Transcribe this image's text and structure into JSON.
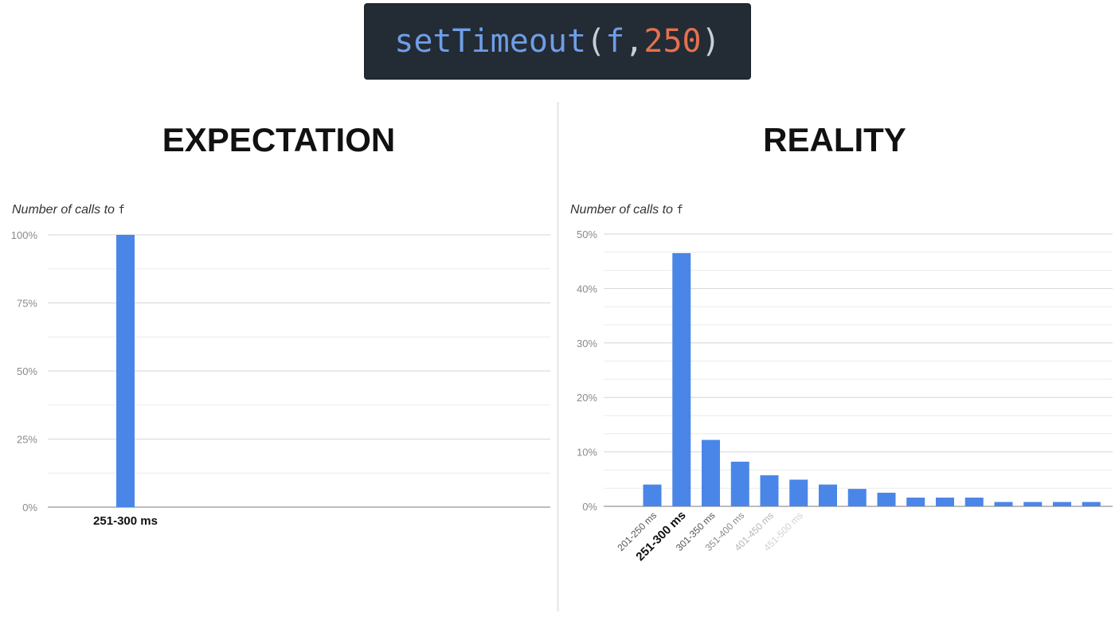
{
  "code": {
    "fn": "setTimeout",
    "open": "(",
    "arg": "f",
    "sep": ", ",
    "num": "250",
    "close": ")"
  },
  "colors": {
    "bar": "#4a86e8",
    "code_bg": "#232b34",
    "number": "#e4714e",
    "function": "#6f9ee8"
  },
  "chart_data": [
    {
      "type": "bar",
      "title": "EXPECTATION",
      "ylabel_prefix": "Number of calls to ",
      "ylabel_code": "f",
      "categories": [
        "251-300 ms"
      ],
      "values": [
        100
      ],
      "ylim": [
        0,
        100
      ],
      "yticks": [
        "0%",
        "25%",
        "50%",
        "75%",
        "100%"
      ],
      "grid": true
    },
    {
      "type": "bar",
      "title": "REALITY",
      "ylabel_prefix": "Number of calls to ",
      "ylabel_code": "f",
      "categories": [
        "201-250 ms",
        "251-300 ms",
        "301-350 ms",
        "351-400 ms",
        "401-450 ms",
        "451-500 ms",
        "",
        "",
        "",
        "",
        "",
        "",
        "",
        "",
        "",
        ""
      ],
      "values": [
        4.0,
        46.5,
        12.2,
        8.2,
        5.7,
        4.9,
        4.0,
        3.2,
        2.5,
        1.6,
        1.6,
        1.6,
        0.8,
        0.8,
        0.8,
        0.8
      ],
      "ylim": [
        0,
        50
      ],
      "yticks": [
        "0%",
        "10%",
        "20%",
        "30%",
        "40%",
        "50%"
      ],
      "grid": true
    }
  ]
}
